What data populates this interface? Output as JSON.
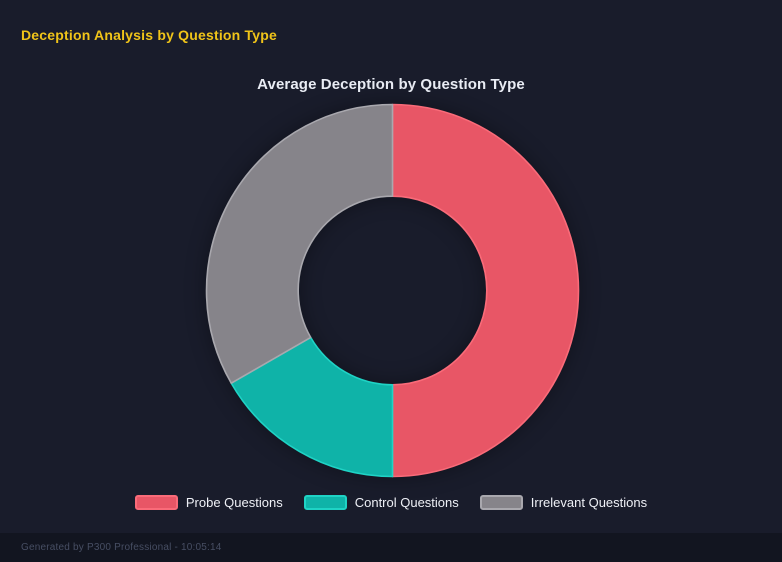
{
  "page": {
    "background": "#191c2b",
    "header": {
      "title": "Deception Analysis by Question Type",
      "color": "#f0c419"
    },
    "footer": {
      "text": "Generated by P300 Professional - 10:05:14",
      "background": "#121520",
      "color": "#474e63"
    }
  },
  "chart_data": {
    "type": "pie",
    "variant": "doughnut",
    "title": "Average Deception by Question Type",
    "title_color": "#e9ecf4",
    "categories": [
      "Probe Questions",
      "Control Questions",
      "Irrelevant Questions"
    ],
    "values": [
      50,
      16.7,
      33.3
    ],
    "values_estimated_from_angles_deg": [
      180,
      60,
      120
    ],
    "colors": [
      "#e85666",
      "#0fb3a8",
      "#86848a"
    ],
    "border_colors": [
      "#fa6b79",
      "#1fd3c5",
      "#a9a8ae"
    ],
    "legend_position": "bottom",
    "legend_text_color": "#eef0f6",
    "start_angle_deg": 0,
    "direction": "clockwise",
    "inner_radius_ratio": 0.507,
    "hole_color": "#191c2b"
  }
}
